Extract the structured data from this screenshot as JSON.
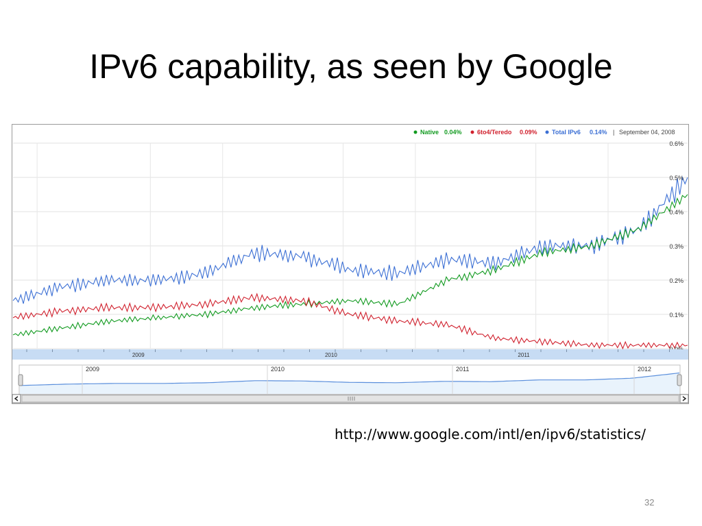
{
  "slide": {
    "title": "IPv6 capability, as seen by Google",
    "source_url": "http://www.google.com/intl/en/ipv6/statistics/",
    "page_number": "32"
  },
  "legend": {
    "items": [
      {
        "name": "Native",
        "value": "0.04%",
        "color": "#119a1f"
      },
      {
        "name": "6to4/Teredo",
        "value": "0.09%",
        "color": "#d0202d"
      },
      {
        "name": "Total IPv6",
        "value": "0.14%",
        "color": "#3b6fd4"
      }
    ],
    "separator": "|",
    "date": "September 04, 2008"
  },
  "colors": {
    "native": "#119a1f",
    "teredo": "#d0202d",
    "total": "#3b6fd4",
    "axis_band": "#c7dcf4",
    "navigator_fill": "#e9f3fc"
  },
  "navigator": {
    "year_labels": [
      "2009",
      "2010",
      "2011",
      "2012"
    ]
  },
  "chart_data": {
    "type": "line",
    "title": "",
    "xlabel": "",
    "ylabel": "",
    "x": [
      "2008-09",
      "2008-12",
      "2009-03",
      "2009-06",
      "2009-09",
      "2009-12",
      "2010-03",
      "2010-06",
      "2010-09",
      "2010-12",
      "2011-03",
      "2011-06",
      "2011-09",
      "2011-12",
      "2012-02"
    ],
    "x_tick_labels": [
      "2009",
      "2010",
      "2011"
    ],
    "y_tick_labels": [
      "0.0%",
      "0.1%",
      "0.2%",
      "0.3%",
      "0.4%",
      "0.5%",
      "0.6%"
    ],
    "ylim": [
      0,
      0.6
    ],
    "grid": true,
    "legend_position": "top-right",
    "series": [
      {
        "name": "Native",
        "values": [
          0.04,
          0.06,
          0.08,
          0.09,
          0.1,
          0.12,
          0.13,
          0.14,
          0.13,
          0.2,
          0.23,
          0.28,
          0.3,
          0.35,
          0.45
        ]
      },
      {
        "name": "6to4/Teredo",
        "values": [
          0.09,
          0.11,
          0.12,
          0.12,
          0.13,
          0.15,
          0.14,
          0.1,
          0.08,
          0.07,
          0.03,
          0.02,
          0.01,
          0.01,
          0.01
        ]
      },
      {
        "name": "Total IPv6",
        "values": [
          0.14,
          0.18,
          0.2,
          0.2,
          0.22,
          0.28,
          0.27,
          0.23,
          0.22,
          0.26,
          0.25,
          0.3,
          0.3,
          0.35,
          0.5
        ]
      }
    ]
  }
}
